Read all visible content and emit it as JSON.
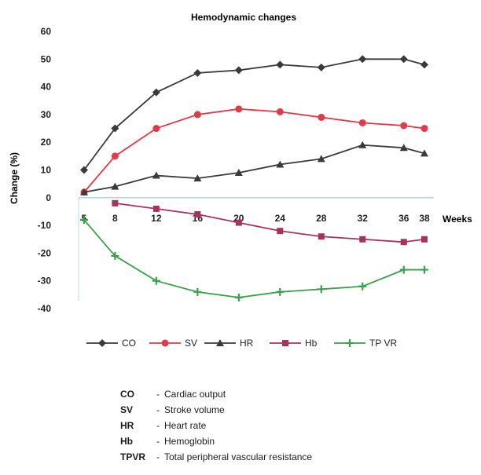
{
  "chart_data": {
    "type": "line",
    "title": "Hemodynamic changes",
    "ylabel": "Change (%)",
    "xlabel": "Weeks",
    "ylim": [
      -40,
      60
    ],
    "yticks": [
      -40,
      -30,
      -20,
      -10,
      0,
      10,
      20,
      30,
      40,
      50,
      60
    ],
    "x_ticks": [
      "5",
      "8",
      "12",
      "16",
      "20",
      "24",
      "28",
      "32",
      "36",
      "38"
    ],
    "legend_position": "bottom",
    "series": [
      {
        "name": "CO",
        "color": "#3a3a3a",
        "marker": "diamond",
        "x": [
          5,
          8,
          12,
          16,
          20,
          24,
          28,
          32,
          36,
          38
        ],
        "y": [
          10,
          25,
          38,
          45,
          46,
          48,
          47,
          50,
          50,
          48
        ]
      },
      {
        "name": "SV",
        "color": "#e23a48",
        "marker": "circle",
        "x": [
          5,
          8,
          12,
          16,
          20,
          24,
          28,
          32,
          36,
          38
        ],
        "y": [
          2,
          15,
          25,
          30,
          32,
          31,
          29,
          27,
          26,
          25
        ]
      },
      {
        "name": "HR",
        "color": "#3a3a3a",
        "marker": "triangle",
        "x": [
          5,
          8,
          12,
          16,
          20,
          24,
          28,
          32,
          36,
          38
        ],
        "y": [
          2,
          4,
          8,
          7,
          9,
          12,
          14,
          19,
          18,
          16
        ]
      },
      {
        "name": "Hb",
        "color": "#a8325e",
        "marker": "square",
        "x": [
          8,
          12,
          16,
          20,
          24,
          28,
          32,
          36,
          38
        ],
        "y": [
          -2,
          -4,
          -6,
          -9,
          -12,
          -14,
          -15,
          -16,
          -15
        ]
      },
      {
        "name": "TP VR",
        "color": "#3aa14a",
        "marker": "plus",
        "x": [
          5,
          8,
          12,
          16,
          20,
          24,
          28,
          32,
          36,
          38
        ],
        "y": [
          -8,
          -21,
          -30,
          -34,
          -36,
          -34,
          -33,
          -32,
          -26,
          -26
        ]
      }
    ]
  },
  "abbreviations": [
    {
      "key": "CO",
      "desc": "Cardiac output"
    },
    {
      "key": "SV",
      "desc": "Stroke volume"
    },
    {
      "key": "HR",
      "desc": "Heart rate"
    },
    {
      "key": "Hb",
      "desc": "Hemoglobin"
    },
    {
      "key": "TPVR",
      "desc": "Total peripheral vascular resistance"
    }
  ],
  "separator": "-"
}
